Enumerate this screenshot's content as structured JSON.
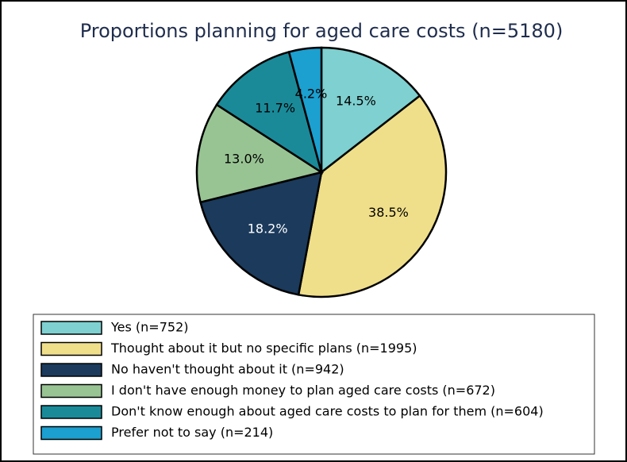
{
  "chart_data": {
    "type": "pie",
    "title": "Proportions planning for aged care costs (n=5180)",
    "categories": [
      "Yes (n=752)",
      "Thought about it but no specific plans (n=1995)",
      "No haven't thought about it (n=942)",
      "I don't have enough money to plan aged care costs (n=672)",
      "Don't know enough about aged care costs to plan for them (n=604)",
      "Prefer not to say (n=214)"
    ],
    "values": [
      14.5,
      38.5,
      18.2,
      13.0,
      11.7,
      4.2
    ],
    "value_labels": [
      "14.5%",
      "38.5%",
      "18.2%",
      "13.0%",
      "11.7%",
      "4.2%"
    ],
    "colors": [
      "#7fd0d0",
      "#f0df8a",
      "#1b3a5c",
      "#98c493",
      "#1a8a99",
      "#1ba0d0"
    ],
    "legend": "bottom"
  }
}
